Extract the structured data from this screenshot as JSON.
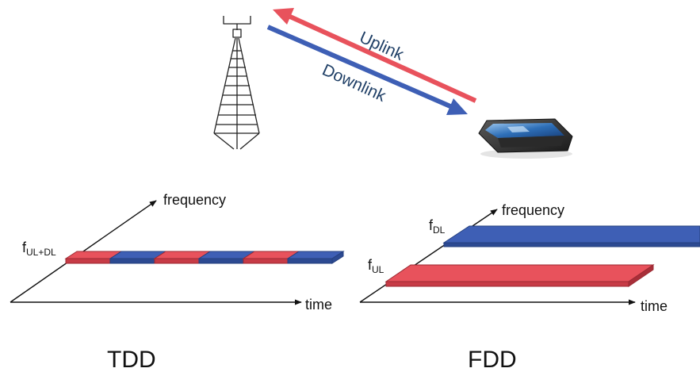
{
  "colors": {
    "uplink": "#e8525c",
    "downlink": "#3e5fb5",
    "text": "#111111",
    "link_text": "#1f3f66"
  },
  "top": {
    "uplink_label": "Uplink",
    "downlink_label": "Downlink",
    "tower_icon": "cell-tower-icon",
    "phone_icon": "smartphone-icon"
  },
  "tdd": {
    "title": "TDD",
    "freq_label_main": "f",
    "freq_label_sub": "UL+DL",
    "y_axis_label": "frequency",
    "x_axis_label": "time",
    "slots": [
      "uplink",
      "downlink",
      "uplink",
      "downlink",
      "uplink",
      "downlink"
    ]
  },
  "fdd": {
    "title": "FDD",
    "dl_label_main": "f",
    "dl_label_sub": "DL",
    "ul_label_main": "f",
    "ul_label_sub": "UL",
    "y_axis_label": "frequency",
    "x_axis_label": "time"
  }
}
